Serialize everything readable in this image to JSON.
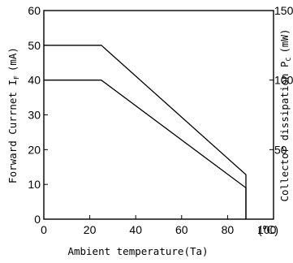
{
  "chart_data": {
    "type": "line",
    "xlabel": "Ambient temperature(Ta)",
    "ylabel": "Forward Currnet I",
    "ylabel_sub": "F",
    "ylabel_unit": "(mA)",
    "y2label": "Collector dissipation P",
    "y2label_sub": "C",
    "y2label_unit": "(mW)",
    "x_unit": "(℃)",
    "xlim": [
      0,
      100
    ],
    "ylim": [
      0,
      60
    ],
    "y2lim": [
      0,
      150
    ],
    "x_ticks": [
      0,
      20,
      40,
      60,
      80,
      100
    ],
    "y_ticks": [
      0,
      10,
      20,
      30,
      40,
      50,
      60
    ],
    "y2_ticks": [
      50,
      100,
      150
    ],
    "x_tick_labels": [
      "0",
      "20",
      "40",
      "60",
      "80",
      "100"
    ],
    "y_tick_labels": [
      "0",
      "10",
      "20",
      "30",
      "40",
      "50",
      "60"
    ],
    "y2_tick_labels": [
      "50",
      "100",
      "150"
    ],
    "grid": false,
    "series": [
      {
        "axis": "y2",
        "x": [
          0,
          25,
          88,
          88
        ],
        "y": [
          125,
          125,
          32,
          0
        ]
      },
      {
        "axis": "y",
        "x": [
          0,
          25,
          88,
          88
        ],
        "y": [
          40,
          40,
          9,
          0
        ]
      }
    ]
  }
}
